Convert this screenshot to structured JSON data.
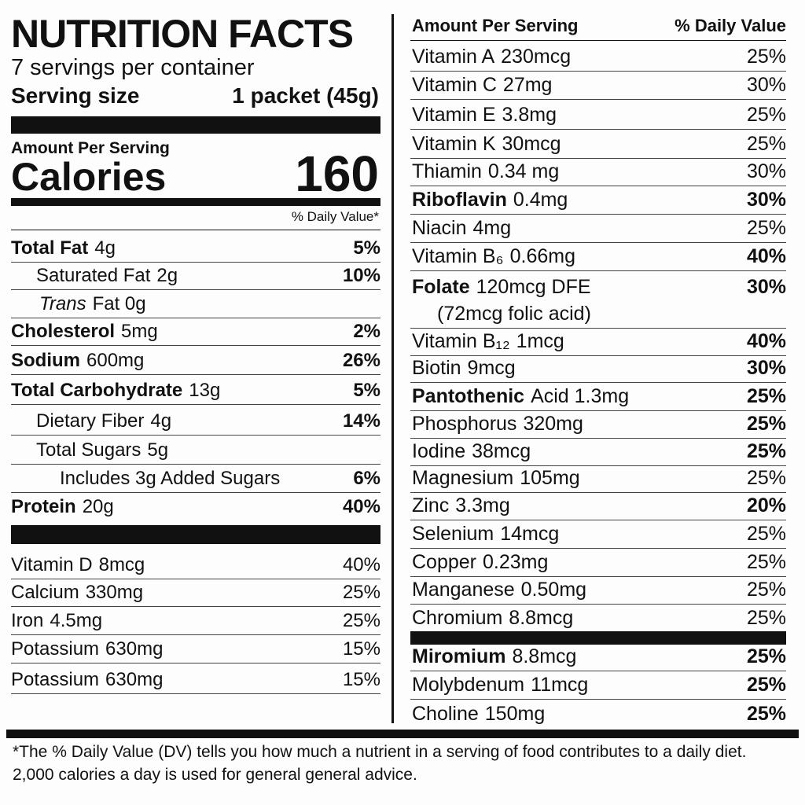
{
  "header": {
    "title": "NUTRITION FACTS",
    "servings": "7 servings per container",
    "serving_label": "Serving size",
    "serving_value": "1 packet (45g)"
  },
  "calories": {
    "amount_label": "Amount Per Serving",
    "label": "Calories",
    "value": "160",
    "dv_header": "% Daily Value*"
  },
  "left_nutrients": [
    {
      "name": "Total Fat",
      "amount": "4g",
      "dv": "5%"
    },
    {
      "name": "Saturated Fat",
      "amount": "2g",
      "dv": "10%"
    },
    {
      "name": "Trans",
      "amount": "Fat 0g"
    },
    {
      "name": "Cholesterol",
      "amount": "5mg",
      "dv": "2%"
    },
    {
      "name": "Sodium",
      "amount": "600mg",
      "dv": "26%"
    },
    {
      "name": "Total Carbohydrate",
      "amount": "13g",
      "dv": "5%"
    },
    {
      "name": "Dietary Fiber",
      "amount": "4g",
      "dv": "14%"
    },
    {
      "name": "Total Sugars",
      "amount": "5g"
    },
    {
      "name": "Includes 3g Added Sugars",
      "dv": "6%"
    },
    {
      "name": "Protein",
      "amount": "20g",
      "dv": "40%"
    }
  ],
  "left_vitamins": [
    {
      "name": "Vitamin D",
      "amount": "8mcg",
      "dv": "40%"
    },
    {
      "name": "Calcium",
      "amount": "330mg",
      "dv": "25%"
    },
    {
      "name": "Iron",
      "amount": "4.5mg",
      "dv": "25%"
    },
    {
      "name": "Potassium",
      "amount": "630mg",
      "dv": "15%"
    },
    {
      "name": "Potassium",
      "amount": "630mg",
      "dv": "15%"
    }
  ],
  "right_header": {
    "amount_label": "Amount Per Serving",
    "dv_label": "% Daily Value"
  },
  "right_rows": [
    {
      "name": "Vitamin A",
      "amount": "230mcg",
      "dv": "25%"
    },
    {
      "name": "Vitamin C",
      "amount": "27mg",
      "dv": "30%"
    },
    {
      "name": "Vitamin E",
      "amount": "3.8mg",
      "dv": "25%"
    },
    {
      "name": "Vitamin K",
      "amount": "30mcg",
      "dv": "25%"
    },
    {
      "name": "Thiamin",
      "amount": "0.34 mg",
      "dv": "30%"
    },
    {
      "name": "Riboflavin",
      "amount": "0.4mg",
      "dv": "30%"
    },
    {
      "name": "Niacin",
      "amount": "4mg",
      "dv": "25%"
    },
    {
      "name": "Vitamin B₆",
      "amount": "0.66mg",
      "dv": "40%"
    },
    {
      "name": "Folate",
      "amount": "120mcg DFE",
      "dv": "30%",
      "note": "(72mcg folic acid)"
    },
    {
      "name": "Vitamin B₁₂",
      "amount": "1mcg",
      "dv": "40%"
    },
    {
      "name": "Biotin",
      "amount": "9mcg",
      "dv": "30%"
    },
    {
      "name": "Pantothenic",
      "amount": "Acid 1.3mg",
      "dv": "25%"
    },
    {
      "name": "Phosphorus",
      "amount": "320mg",
      "dv": "25%"
    },
    {
      "name": "Iodine",
      "amount": "38mcg",
      "dv": "25%"
    },
    {
      "name": "Magnesium",
      "amount": "105mg",
      "dv": "25%"
    },
    {
      "name": "Zinc",
      "amount": "3.3mg",
      "dv": "20%"
    },
    {
      "name": "Selenium",
      "amount": "14mcg",
      "dv": "25%"
    },
    {
      "name": "Copper",
      "amount": "0.23mg",
      "dv": "25%"
    },
    {
      "name": "Manganese",
      "amount": "0.50mg",
      "dv": "25%"
    },
    {
      "name": "Chromium",
      "amount": "8.8mcg",
      "dv": "25%"
    },
    {
      "name": "Miromium",
      "amount": "8.8mcg",
      "dv": "25%"
    },
    {
      "name": "Molybdenum",
      "amount": "11mcg",
      "dv": "25%"
    },
    {
      "name": "Choline",
      "amount": "150mg",
      "dv": "25%"
    }
  ],
  "footnote": "*The % Daily Value (DV) tells you how much a nutrient in a serving of food contributes to a daily diet. 2,000 calories a day is used for general general advice."
}
